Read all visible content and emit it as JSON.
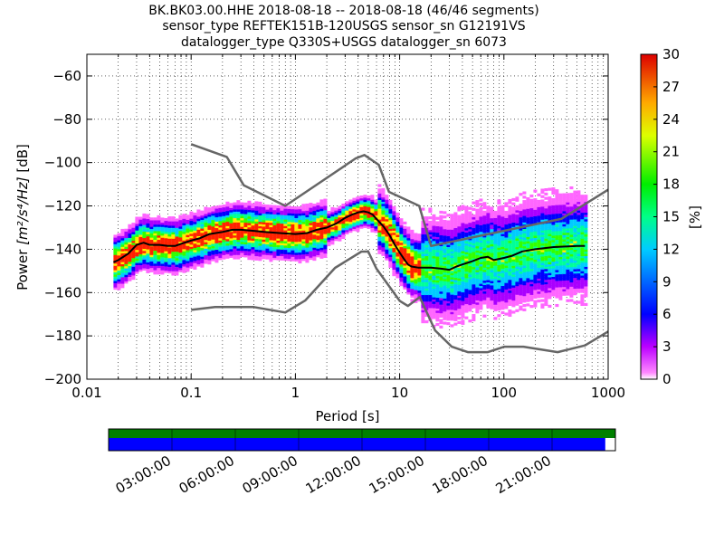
{
  "figure": {
    "title_lines": [
      "BK.BK03.00.HHE   2018-08-18 -- 2018-08-18  (46/46 segments)",
      "sensor_type REFTEK151B-120USGS sensor_sn G12191VS",
      "datalogger_type Q330S+USGS datalogger_sn 6073"
    ]
  },
  "chart_data": {
    "type": "heatmap",
    "xlabel": "Period [s]",
    "ylabel_prefix": "Power ",
    "ylabel_units": "[m²/s⁴/Hz]",
    "ylabel_suffix": " [dB]",
    "x_scale": "log",
    "xlim": [
      0.01,
      1000
    ],
    "ylim": [
      -200,
      -50
    ],
    "x_tick_labels": [
      "0.01",
      "0.1",
      "1",
      "10",
      "100",
      "1000"
    ],
    "y_ticks": [
      -60,
      -80,
      -100,
      -120,
      -140,
      -160,
      -180,
      -200
    ],
    "y_tick_labels": [
      "−60",
      "−80",
      "−100",
      "−120",
      "−140",
      "−160",
      "−180",
      "−200"
    ],
    "grid": "dotted",
    "colorbar": {
      "label": "[%]",
      "range": [
        0,
        30
      ],
      "ticks": [
        0,
        3,
        6,
        9,
        12,
        15,
        18,
        21,
        24,
        27,
        30
      ]
    },
    "new_high_noise_model": {
      "x": [
        0.1,
        0.22,
        0.32,
        0.8,
        3.8,
        4.6,
        6.3,
        7.9,
        15.4,
        20,
        354.8,
        1000
      ],
      "y": [
        -91.5,
        -97.4,
        -110.5,
        -120,
        -98,
        -96.5,
        -101,
        -113.5,
        -120,
        -138.5,
        -126,
        -112.5
      ]
    },
    "new_low_noise_model": {
      "x": [
        0.1,
        0.17,
        0.4,
        0.8,
        1.24,
        2.4,
        4.3,
        5,
        6,
        10,
        12,
        15.6,
        21.9,
        31.6,
        45,
        70,
        101,
        154,
        328,
        600,
        1000
      ],
      "y": [
        -168,
        -166.7,
        -166.7,
        -169.2,
        -163.7,
        -148.6,
        -141.1,
        -141.1,
        -149,
        -163.8,
        -166.2,
        -162.1,
        -177.5,
        -185,
        -187.5,
        -187.5,
        -185,
        -185,
        -187.5,
        -184.4,
        -178
      ]
    },
    "mode_curve": {
      "x": [
        0.018,
        0.02,
        0.025,
        0.03,
        0.035,
        0.04,
        0.05,
        0.06,
        0.07,
        0.08,
        0.1,
        0.12,
        0.15,
        0.2,
        0.25,
        0.3,
        0.4,
        0.5,
        0.7,
        1,
        1.3,
        1.6,
        2,
        2.5,
        3,
        3.5,
        4,
        4.5,
        5,
        5.5,
        6,
        7,
        8,
        9,
        10,
        11,
        12,
        13,
        15,
        18,
        20,
        25,
        30,
        35,
        40,
        50,
        60,
        70,
        80,
        100,
        120,
        150,
        200,
        300,
        500,
        600
      ],
      "y": [
        -146,
        -145,
        -142,
        -138,
        -137,
        -138,
        -138,
        -138.5,
        -138.5,
        -137.5,
        -136,
        -135,
        -133,
        -132,
        -131,
        -131,
        -131.5,
        -132,
        -132.5,
        -133,
        -132.5,
        -131,
        -130,
        -128,
        -125.5,
        -124,
        -123,
        -122.5,
        -123,
        -124,
        -126,
        -129.5,
        -133.5,
        -138,
        -141.5,
        -144.5,
        -147,
        -148,
        -148.5,
        -148.5,
        -148.5,
        -149,
        -149.5,
        -148,
        -147,
        -145.5,
        -144,
        -143.5,
        -145,
        -144,
        -143,
        -141,
        -140,
        -139,
        -138.5,
        -138.5
      ]
    },
    "timeline": {
      "ticks": [
        "03:00:00",
        "06:00:00",
        "09:00:00",
        "12:00:00",
        "15:00:00",
        "18:00:00",
        "21:00:00"
      ],
      "data_coverage": 0.98,
      "colors": {
        "top": "#008000",
        "bottom": "#0000ff"
      }
    }
  }
}
